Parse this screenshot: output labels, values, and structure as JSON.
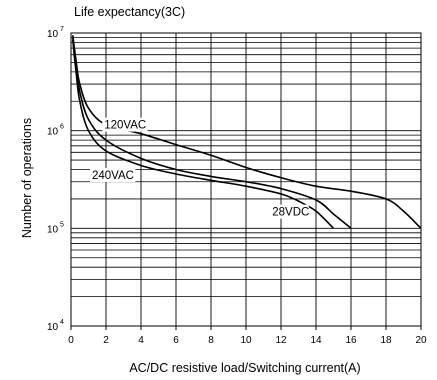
{
  "chart_data": {
    "type": "line",
    "title": "Life expectancy(3C)",
    "xlabel": "AC/DC resistive load/Switching current(A)",
    "ylabel": "Number of operations",
    "xlim": [
      0,
      20
    ],
    "ylim": [
      10000,
      10000000
    ],
    "yscale": "log",
    "grid": true,
    "x_ticks": [
      "0",
      "2",
      "4",
      "6",
      "8",
      "10",
      "12",
      "14",
      "16",
      "18",
      "20"
    ],
    "y_ticks": [
      {
        "base": "10",
        "exp": "4"
      },
      {
        "base": "10",
        "exp": "5"
      },
      {
        "base": "10",
        "exp": "6"
      },
      {
        "base": "10",
        "exp": "7"
      }
    ],
    "series": [
      {
        "name": "120VAC",
        "points": [
          [
            0.1,
            9500000
          ],
          [
            0.3,
            5000000
          ],
          [
            0.5,
            3000000
          ],
          [
            1,
            1700000
          ],
          [
            2,
            1150000
          ],
          [
            4,
            930000
          ],
          [
            6,
            720000
          ],
          [
            8,
            560000
          ],
          [
            10,
            420000
          ],
          [
            12,
            330000
          ],
          [
            14,
            270000
          ],
          [
            16,
            240000
          ],
          [
            18,
            200000
          ],
          [
            19,
            150000
          ],
          [
            20,
            100000
          ]
        ]
      },
      {
        "name": "240VAC",
        "points": [
          [
            0.1,
            9000000
          ],
          [
            0.3,
            4500000
          ],
          [
            0.5,
            2500000
          ],
          [
            1,
            1300000
          ],
          [
            2,
            800000
          ],
          [
            4,
            520000
          ],
          [
            6,
            400000
          ],
          [
            8,
            340000
          ],
          [
            10,
            300000
          ],
          [
            12,
            255000
          ],
          [
            14,
            195000
          ],
          [
            15,
            140000
          ],
          [
            16,
            100000
          ]
        ]
      },
      {
        "name": "28VDC",
        "points": [
          [
            0.1,
            8500000
          ],
          [
            0.3,
            3800000
          ],
          [
            0.5,
            2000000
          ],
          [
            1,
            1000000
          ],
          [
            2,
            620000
          ],
          [
            4,
            440000
          ],
          [
            6,
            360000
          ],
          [
            8,
            310000
          ],
          [
            10,
            270000
          ],
          [
            12,
            225000
          ],
          [
            13,
            190000
          ],
          [
            14,
            150000
          ],
          [
            15,
            100000
          ]
        ]
      }
    ],
    "annotations": [
      {
        "series": "120VAC",
        "text": "120VAC",
        "x": 1.9,
        "y": 1050000
      },
      {
        "series": "240VAC",
        "text": "240VAC",
        "x": 1.2,
        "y": 320000
      },
      {
        "series": "28VDC",
        "text": "28VDC",
        "x": 11.5,
        "y": 135000
      }
    ]
  }
}
